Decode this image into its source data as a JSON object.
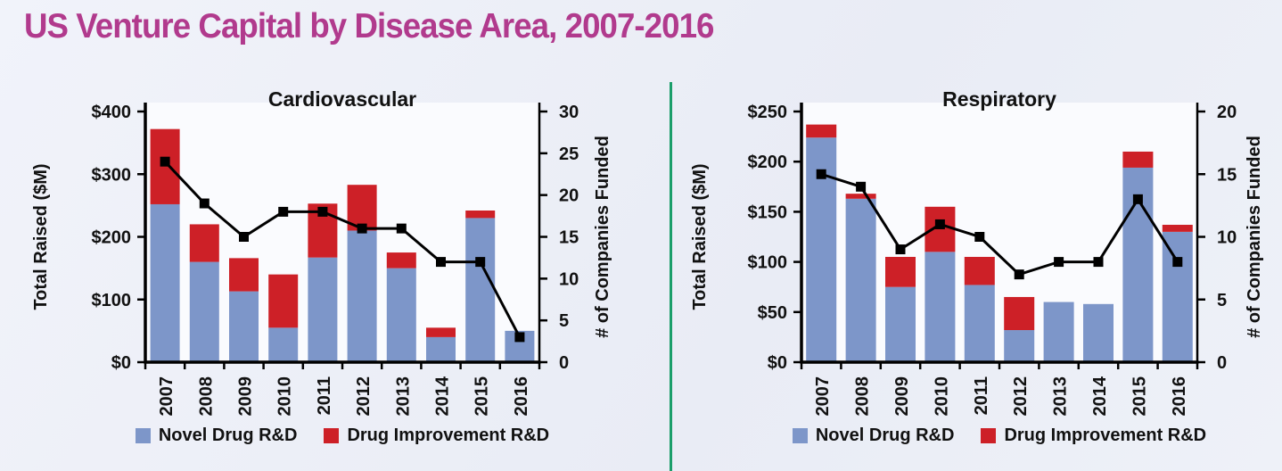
{
  "title": "US Venture Capital by Disease Area, 2007-2016",
  "divider_color": "#1b9e6a",
  "title_color": "#b13a8d",
  "chart_data": [
    {
      "type": "bar",
      "subtype": "stacked-bar-with-line-overlay",
      "title": "Cardiovascular",
      "categories": [
        "2007",
        "2008",
        "2009",
        "2010",
        "2011",
        "2012",
        "2013",
        "2014",
        "2015",
        "2016"
      ],
      "series": [
        {
          "name": "Novel Drug R&D",
          "color": "#7d96c9",
          "values": [
            252,
            160,
            113,
            55,
            167,
            210,
            150,
            40,
            230,
            50
          ]
        },
        {
          "name": "Drug Improvement R&D",
          "color": "#cd2027",
          "values": [
            120,
            60,
            53,
            85,
            86,
            73,
            25,
            15,
            12,
            0
          ]
        }
      ],
      "line_series": {
        "name": "# of Companies Funded",
        "color": "#000000",
        "values": [
          24,
          19,
          15,
          18,
          18,
          16,
          16,
          12,
          12,
          3
        ]
      },
      "left_axis": {
        "label": "Total Raised ($M)",
        "min": 0,
        "max": 400,
        "step": 100,
        "tick_prefix": "$"
      },
      "right_axis": {
        "label": "# of Companies Funded",
        "min": 0,
        "max": 30,
        "step": 5
      },
      "grid": false,
      "legend_position": "bottom"
    },
    {
      "type": "bar",
      "subtype": "stacked-bar-with-line-overlay",
      "title": "Respiratory",
      "categories": [
        "2007",
        "2008",
        "2009",
        "2010",
        "2011",
        "2012",
        "2013",
        "2014",
        "2015",
        "2016"
      ],
      "series": [
        {
          "name": "Novel Drug R&D",
          "color": "#7d96c9",
          "values": [
            224,
            163,
            75,
            110,
            77,
            32,
            60,
            58,
            194,
            130
          ]
        },
        {
          "name": "Drug Improvement R&D",
          "color": "#cd2027",
          "values": [
            13,
            5,
            30,
            45,
            28,
            33,
            0,
            0,
            16,
            7
          ]
        }
      ],
      "line_series": {
        "name": "# of Companies Funded",
        "color": "#000000",
        "values": [
          15,
          14,
          9,
          11,
          10,
          7,
          8,
          8,
          13,
          8
        ]
      },
      "left_axis": {
        "label": "Total Raised ($M)",
        "min": 0,
        "max": 250,
        "step": 50,
        "tick_prefix": "$"
      },
      "right_axis": {
        "label": "# of Companies Funded",
        "min": 0,
        "max": 20,
        "step": 5
      },
      "grid": false,
      "legend_position": "bottom"
    }
  ]
}
